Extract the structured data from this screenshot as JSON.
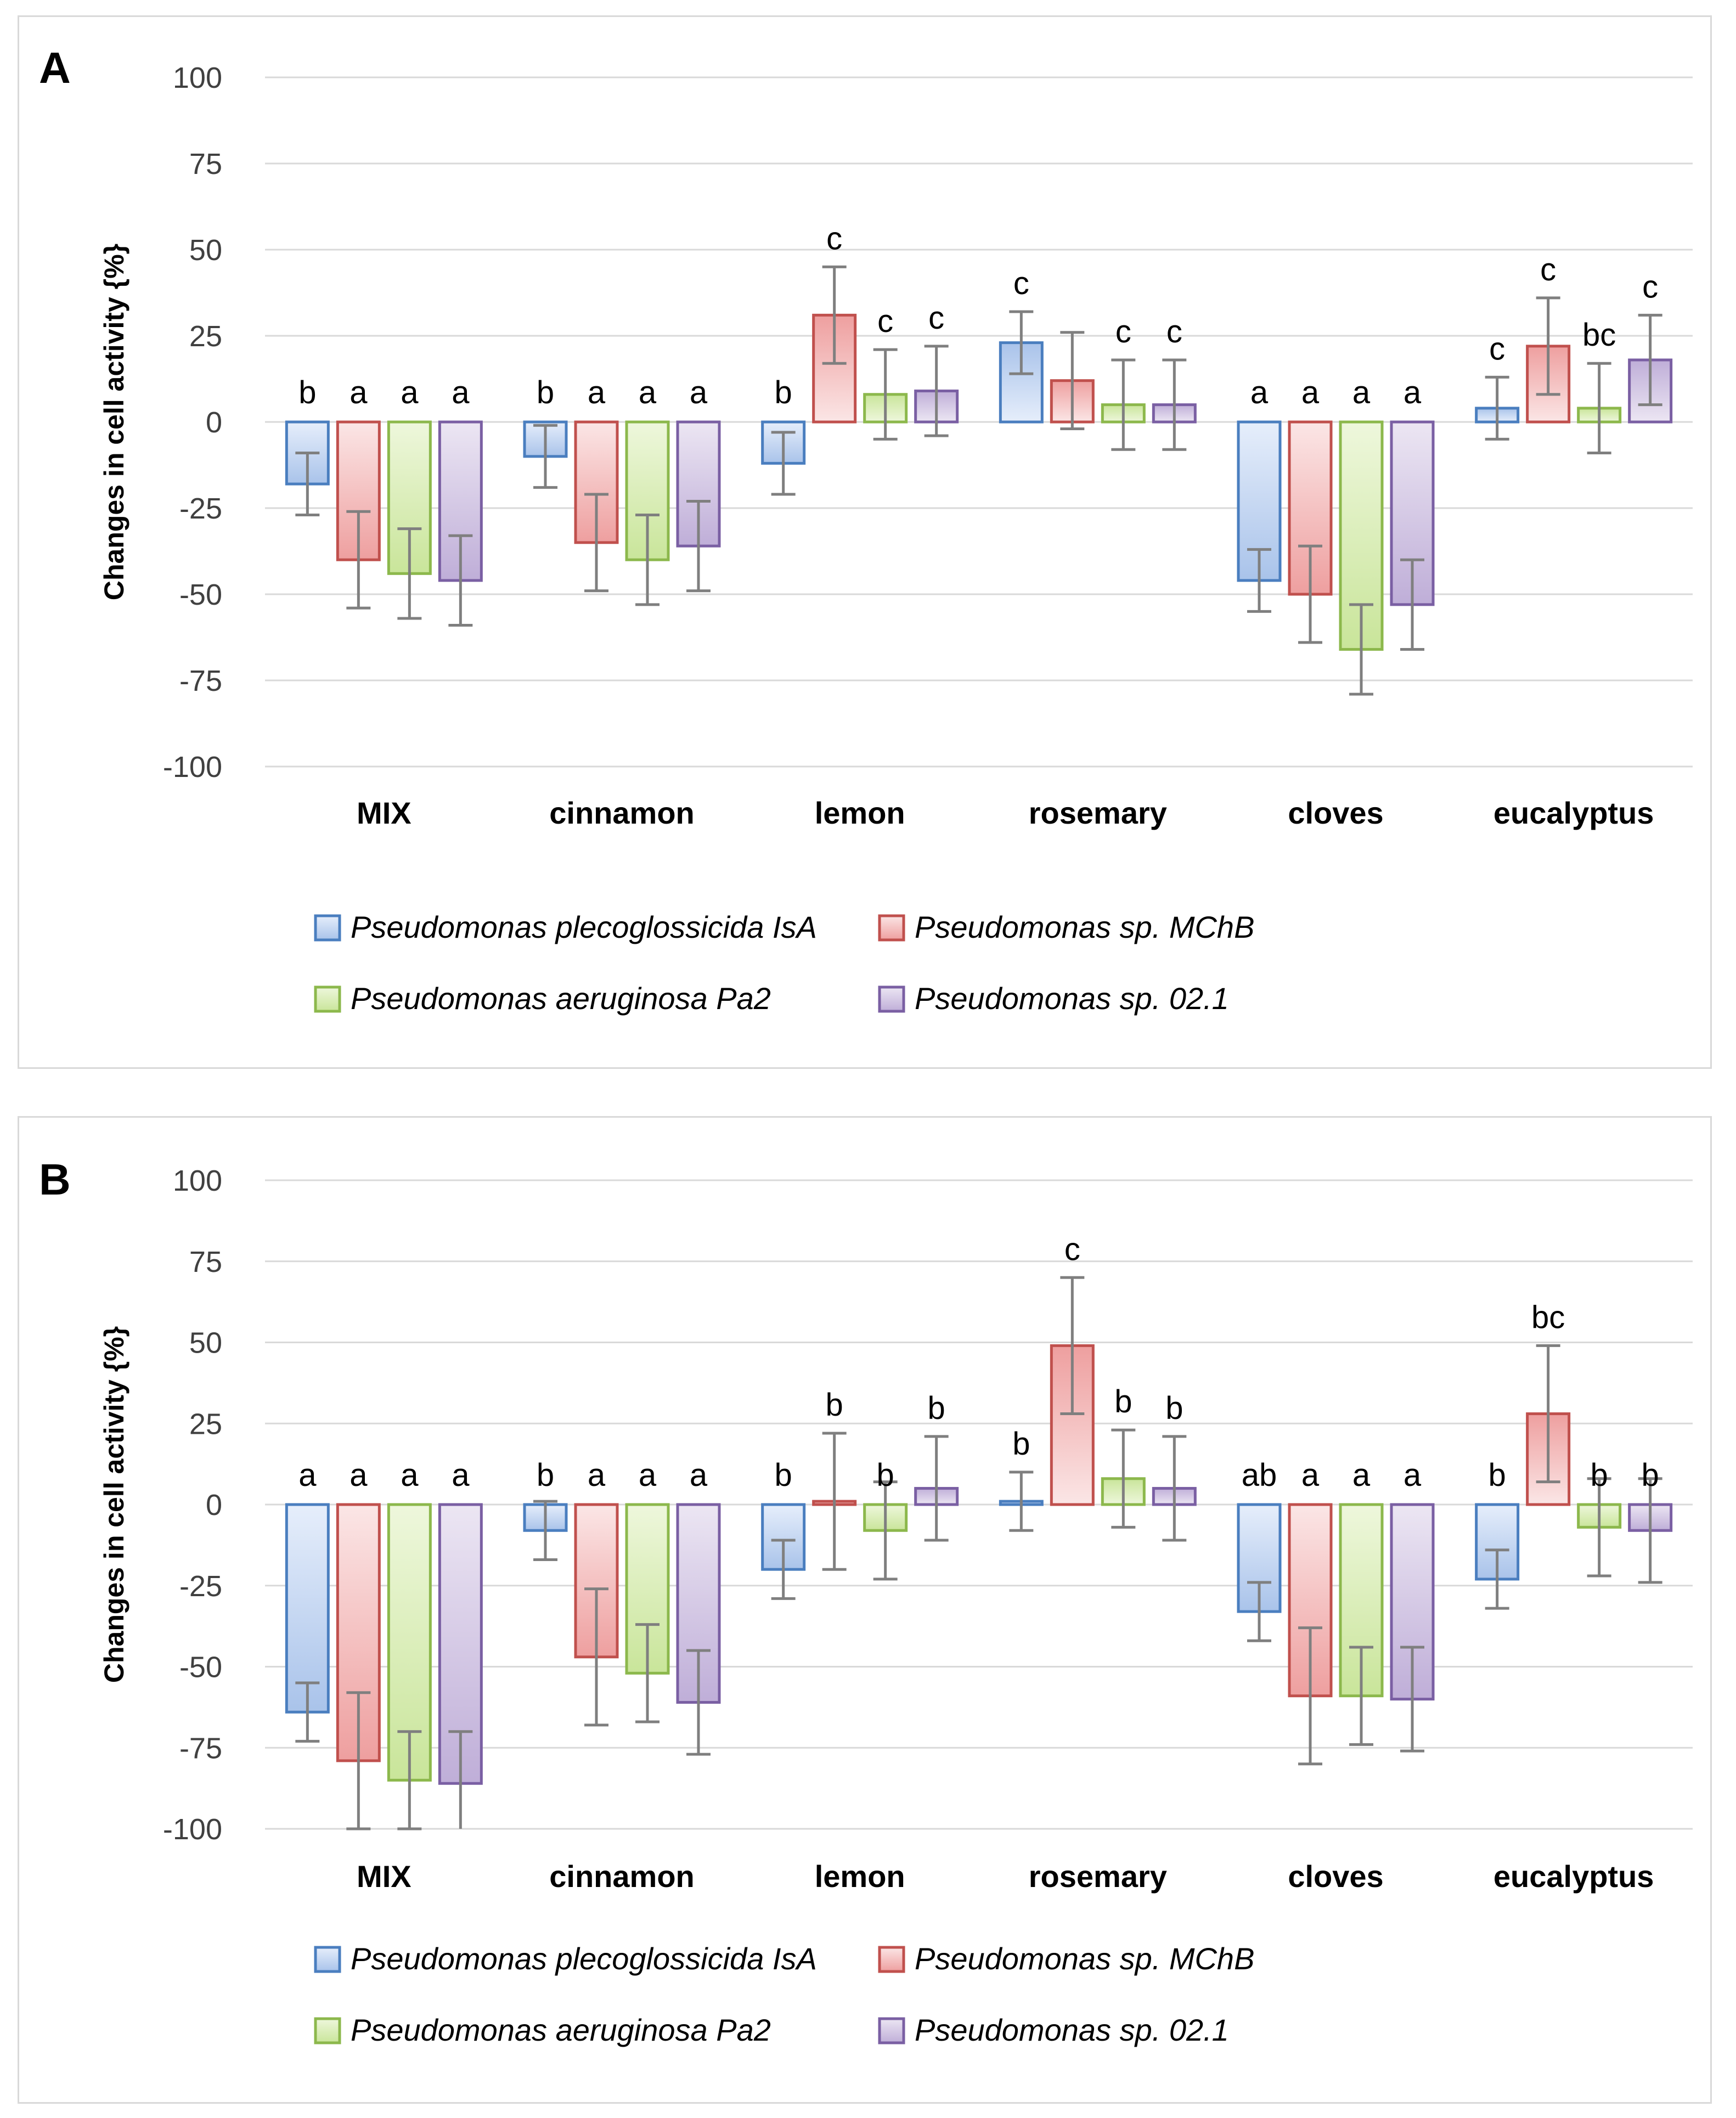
{
  "colors": {
    "series": [
      {
        "fill_light": "#e6eefb",
        "fill_dark": "#a9c3ea",
        "stroke": "#4a7ebf"
      },
      {
        "fill_light": "#fbe6e6",
        "fill_dark": "#ee9f9f",
        "stroke": "#c0504d"
      },
      {
        "fill_light": "#eef7dc",
        "fill_dark": "#c9e59a",
        "stroke": "#8cb84c"
      },
      {
        "fill_light": "#ece6f3",
        "fill_dark": "#bfaed8",
        "stroke": "#7a5fa3"
      }
    ],
    "grid": "#d9d9d9",
    "error_bar": "#7f7f7f",
    "text": "#000000",
    "tick_text": "#404040"
  },
  "chart_data": [
    {
      "type": "bar",
      "panel_label": "A",
      "ylabel": "Changes in cell activity {%}",
      "xlabel": "",
      "ylim": [
        -100,
        100
      ],
      "yticks": [
        "100",
        "75",
        "50",
        "25",
        "0",
        "-25",
        "-50",
        "-75",
        "-100"
      ],
      "ytick_values": [
        100,
        75,
        50,
        25,
        0,
        -25,
        -50,
        -75,
        -100
      ],
      "grid": true,
      "legend_position": "bottom",
      "categories": [
        "MIX",
        "cinnamon",
        "lemon",
        "rosemary",
        "cloves",
        "eucalyptus"
      ],
      "series": [
        {
          "name": "Pseudomonas plecoglossicida IsA",
          "values": [
            -18,
            -10,
            -12,
            23,
            -46,
            4
          ],
          "errors": [
            9,
            9,
            9,
            9,
            9,
            9
          ],
          "labels": [
            "b",
            "b",
            "b",
            "c",
            "a",
            "c"
          ]
        },
        {
          "name": "Pseudomonas sp. MChB",
          "values": [
            -40,
            -35,
            31,
            12,
            -50,
            22
          ],
          "errors": [
            14,
            14,
            14,
            14,
            14,
            14
          ],
          "labels": [
            "a",
            "a",
            "c",
            "",
            "a",
            "c"
          ]
        },
        {
          "name": "Pseudomonas aeruginosa Pa2",
          "values": [
            -44,
            -40,
            8,
            5,
            -66,
            4
          ],
          "errors": [
            13,
            13,
            13,
            13,
            13,
            13
          ],
          "labels": [
            "a",
            "a",
            "c",
            "c",
            "a",
            "bc"
          ]
        },
        {
          "name": "Pseudomonas sp. 02.1",
          "values": [
            -46,
            -36,
            9,
            5,
            -53,
            18
          ],
          "errors": [
            13,
            13,
            13,
            13,
            13,
            13
          ],
          "labels": [
            "a",
            "a",
            "c",
            "c",
            "a",
            "c"
          ]
        }
      ]
    },
    {
      "type": "bar",
      "panel_label": "B",
      "ylabel": "Changes in cell activity {%}",
      "xlabel": "",
      "ylim": [
        -100,
        100
      ],
      "yticks": [
        "100",
        "75",
        "50",
        "25",
        "0",
        "-25",
        "-50",
        "-75",
        "-100"
      ],
      "ytick_values": [
        100,
        75,
        50,
        25,
        0,
        -25,
        -50,
        -75,
        -100
      ],
      "grid": true,
      "legend_position": "bottom",
      "categories": [
        "MIX",
        "cinnamon",
        "lemon",
        "rosemary",
        "cloves",
        "eucalyptus"
      ],
      "series": [
        {
          "name": "Pseudomonas plecoglossicida IsA",
          "values": [
            -64,
            -8,
            -20,
            1,
            -33,
            -23
          ],
          "errors": [
            9,
            9,
            9,
            9,
            9,
            9
          ],
          "labels": [
            "a",
            "b",
            "b",
            "b",
            "ab",
            "b"
          ]
        },
        {
          "name": "Pseudomonas sp. MChB",
          "values": [
            -79,
            -47,
            1,
            49,
            -59,
            28
          ],
          "errors": [
            21,
            21,
            21,
            21,
            21,
            21
          ],
          "labels": [
            "a",
            "a",
            "b",
            "c",
            "a",
            "bc"
          ]
        },
        {
          "name": "Pseudomonas aeruginosa Pa2",
          "values": [
            -85,
            -52,
            -8,
            8,
            -59,
            -7
          ],
          "errors": [
            15,
            15,
            15,
            15,
            15,
            15
          ],
          "labels": [
            "a",
            "a",
            "b",
            "b",
            "a",
            "b"
          ]
        },
        {
          "name": "Pseudomonas sp. 02.1",
          "values": [
            -86,
            -61,
            5,
            5,
            -60,
            -8
          ],
          "errors": [
            16,
            16,
            16,
            16,
            16,
            16
          ],
          "labels": [
            "a",
            "a",
            "b",
            "b",
            "a",
            "b"
          ]
        }
      ]
    }
  ]
}
